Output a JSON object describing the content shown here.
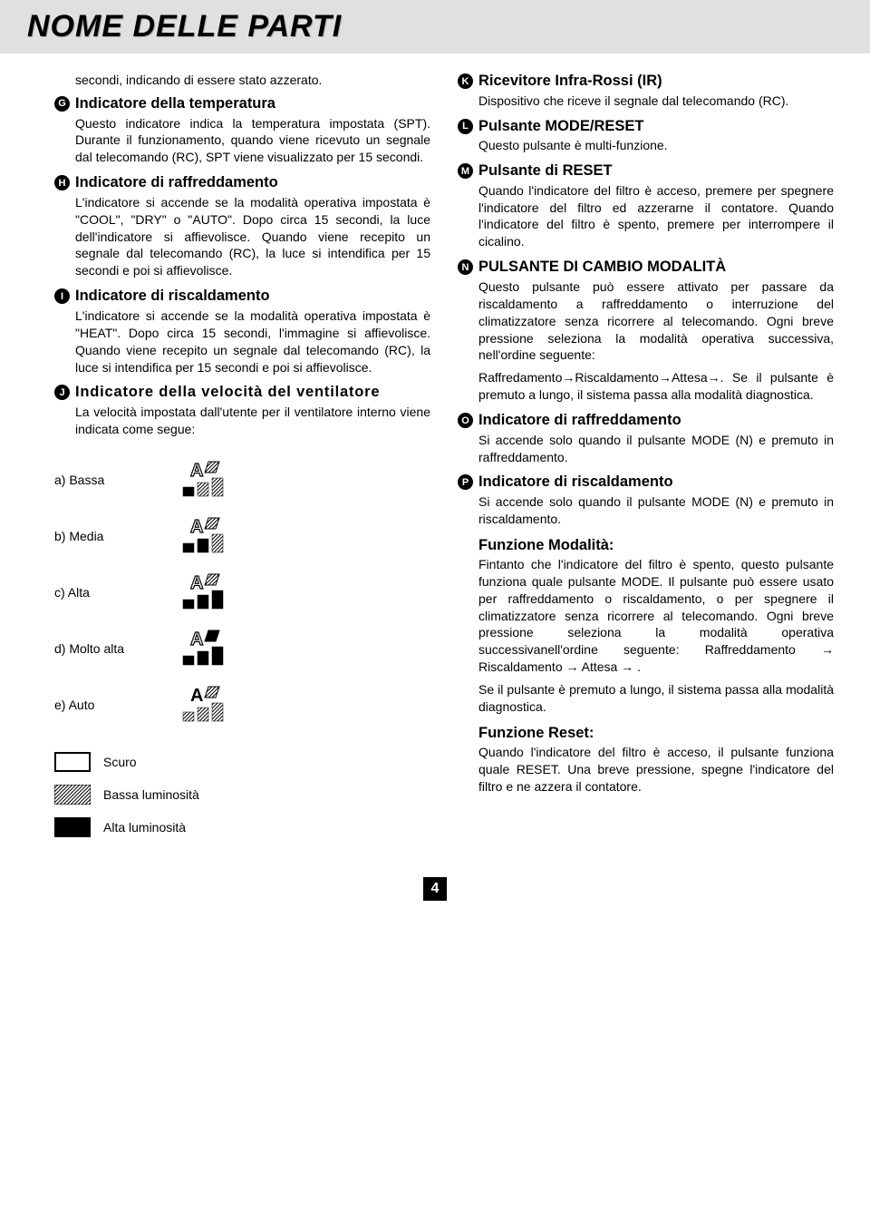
{
  "header": {
    "title": "NOME DELLE PARTI"
  },
  "page_number": "4",
  "colors": {
    "header_bg": "#e0e0e0",
    "text": "#000000",
    "bg": "#ffffff"
  },
  "left": {
    "intro": "secondi, indicando di essere stato azzerato.",
    "sections": [
      {
        "letter": "G",
        "title": "Indicatore della temperatura",
        "body": "Questo indicatore indica la temperatura impostata (SPT). Durante il funzionamento, quando viene ricevuto un segnale dal telecomando (RC), SPT viene visualizzato per 15 secondi."
      },
      {
        "letter": "H",
        "title": "Indicatore di raffreddamento",
        "body": "L'indicatore si accende se la modalità operativa impostata è \"COOL\", \"DRY\" o \"AUTO\". Dopo circa 15 secondi, la luce dell'indicatore si affievolisce. Quando viene recepito un segnale dal telecomando (RC), la luce si intendifica per 15 secondi e poi si affievolisce."
      },
      {
        "letter": "I",
        "title": "Indicatore di riscaldamento",
        "body": "L'indicatore si accende se la modalità operativa impostata è \"HEAT\". Dopo circa 15 secondi, l'immagine si affievolisce. Quando viene recepito un segnale dal telecomando (RC), la luce si intendifica per 15 secondi e poi si affievolisce."
      },
      {
        "letter": "J",
        "title": "Indicatore della velocità del ventilatore",
        "title_spaced": true,
        "body": "La velocità impostata dall'utente per il ventilatore interno viene indicata come segue:"
      }
    ],
    "speeds": [
      {
        "label": "a) Bassa",
        "bars": [
          1,
          0,
          0
        ],
        "a_outline": true,
        "flag": "hatch"
      },
      {
        "label": "b) Media",
        "bars": [
          1,
          1,
          0
        ],
        "a_outline": true,
        "flag": "hatch"
      },
      {
        "label": "c) Alta",
        "bars": [
          1,
          1,
          1
        ],
        "a_outline": true,
        "flag": "hatch"
      },
      {
        "label": "d) Molto alta",
        "bars": [
          1,
          1,
          1
        ],
        "a_outline": true,
        "flag": "solid"
      },
      {
        "label": "e) Auto",
        "bars": [
          0,
          0,
          0
        ],
        "bars_hatch": true,
        "a_outline": false,
        "flag": "hatch"
      }
    ],
    "legend": [
      {
        "style": "outline",
        "label": "Scuro"
      },
      {
        "style": "hatch",
        "label": "Bassa luminosità"
      },
      {
        "style": "solid",
        "label": "Alta luminosità"
      }
    ]
  },
  "right": {
    "sections": [
      {
        "letter": "K",
        "title": "Ricevitore Infra-Rossi (IR)",
        "body": "Dispositivo che riceve il segnale dal telecomando (RC)."
      },
      {
        "letter": "L",
        "title": "Pulsante MODE/RESET",
        "body": "Questo pulsante è multi-funzione."
      },
      {
        "letter": "M",
        "title": "Pulsante di RESET",
        "body": "Quando l'indicatore del filtro è acceso, premere per spegnere l'indicatore del filtro ed azzerarne il contatore. Quando l'indicatore del filtro è spento, premere per interrompere il cicalino."
      },
      {
        "letter": "N",
        "title": "PULSANTE DI CAMBIO MODALITÀ",
        "body": "Questo pulsante può essere attivato per passare da riscaldamento a raffreddamento o interruzione del climatizzatore senza ricorrere al telecomando. Ogni breve pressione seleziona la modalità operativa successiva, nell'ordine seguente:",
        "body2": "Raffredamento→Riscaldamento→Attesa→. Se il pulsante è premuto a lungo, il sistema passa alla modalità diagnostica."
      },
      {
        "letter": "O",
        "title": "Indicatore di raffreddamento",
        "body": "Si accende solo quando il pulsante MODE (N) e premuto in raffreddamento."
      },
      {
        "letter": "P",
        "title": "Indicatore di riscaldamento",
        "body": "Si accende solo quando il pulsante MODE (N) e premuto in riscaldamento."
      }
    ],
    "mode_header": "Funzione Modalità:",
    "mode_body": "Fintanto che l'indicatore del filtro è spento, questo pulsante funziona quale pulsante MODE. Il pulsante può essere usato per raffreddamento o riscaldamento, o per spegnere il climatizzatore senza ricorrere al telecomando. Ogni breve pressione seleziona la modalità operativa successivanell'ordine seguente:  Raffreddamento → Riscaldamento → Attesa → .",
    "mode_body2": "Se il pulsante è premuto a lungo, il sistema passa alla modalità diagnostica.",
    "reset_header": "Funzione Reset:",
    "reset_body": "Quando l'indicatore del filtro è acceso, il pulsante funziona quale RESET. Una breve pressione, spegne l'indicatore del filtro e ne azzera il contatore."
  }
}
